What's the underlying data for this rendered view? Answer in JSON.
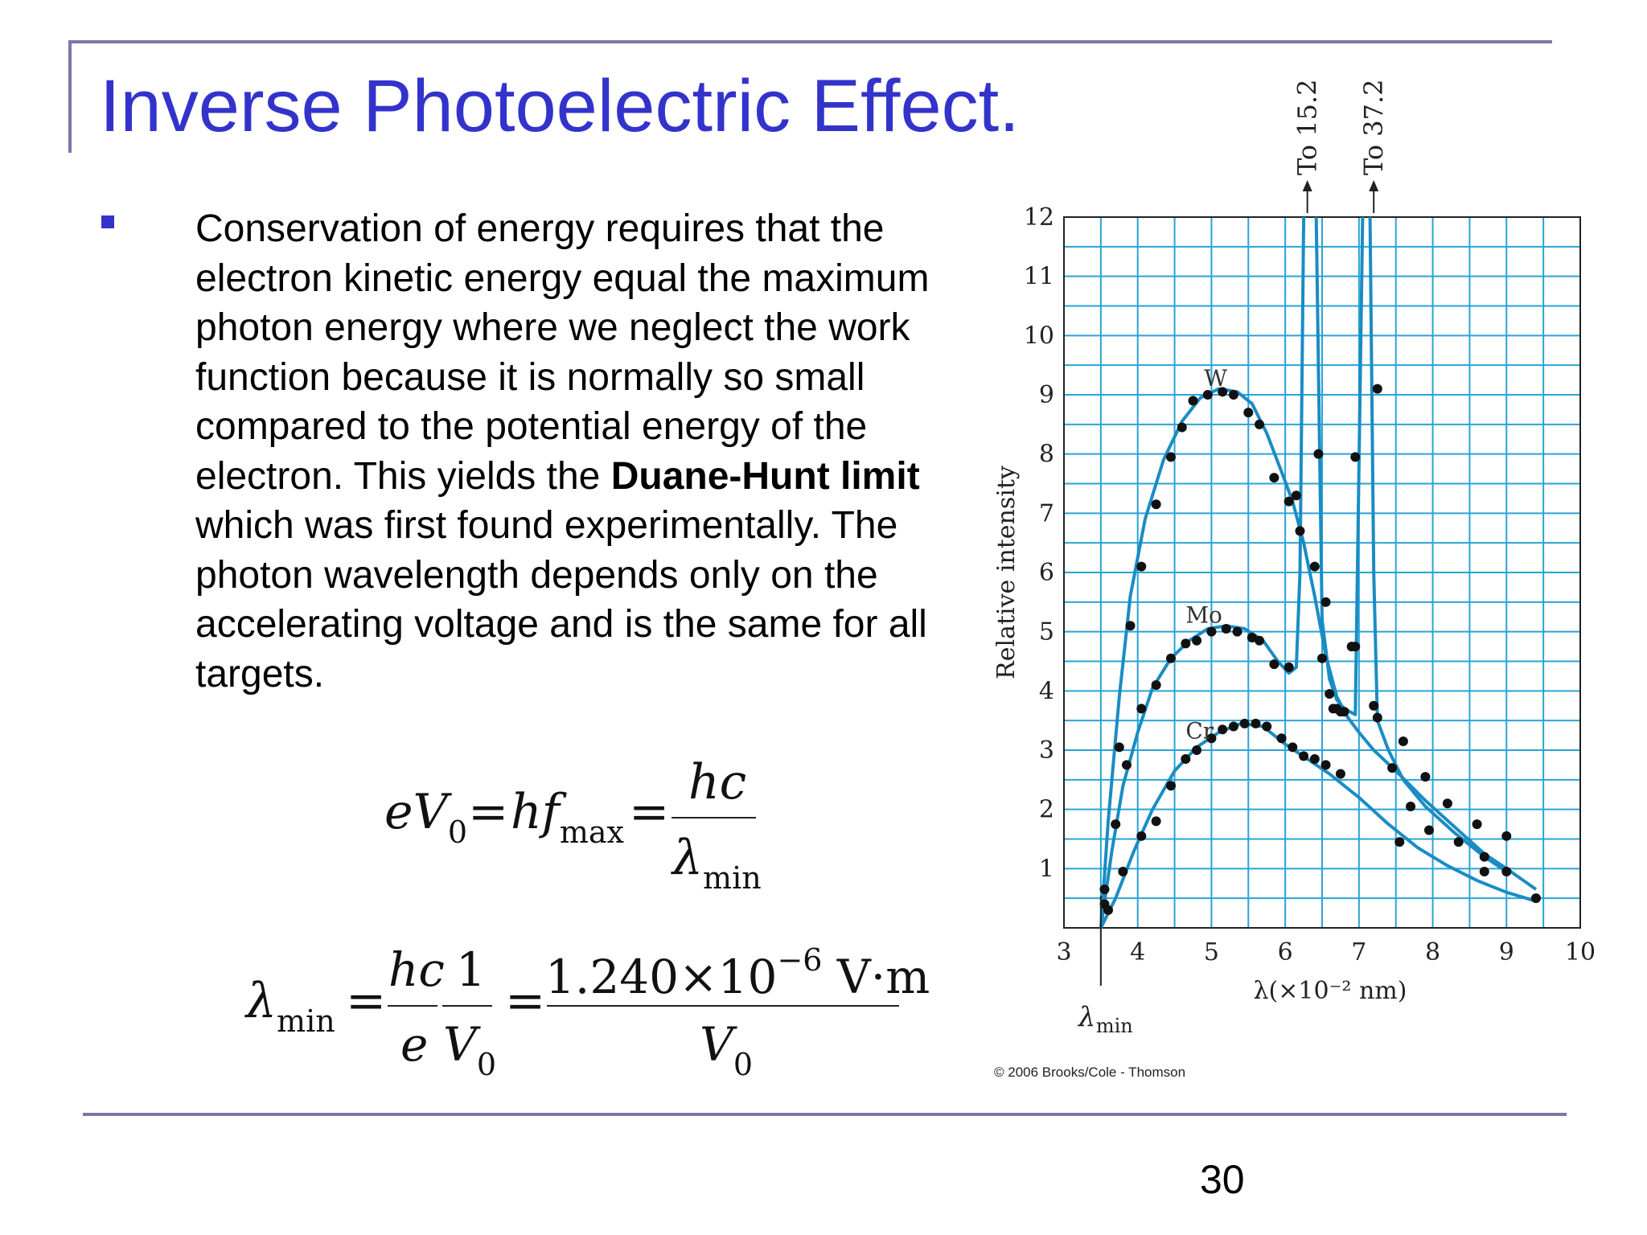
{
  "slide": {
    "title": "Inverse Photoelectric Effect.",
    "body_part1": "Conservation of energy requires that the electron kinetic energy equal the maximum photon energy where we neglect the work function because it is normally so small compared to the potential energy of the electron. This yields the ",
    "body_bold": "Duane-Hunt limit",
    "body_part2": " which was first found experimentally. The photon wavelength depends only on the accelerating voltage and is the same for all targets.",
    "page_number": "30",
    "copyright": "© 2006 Brooks/Cole - Thomson"
  },
  "equations": {
    "eq1": {
      "lhs_e": "e",
      "lhs_V": "V",
      "lhs_sub": "0",
      "eq_sign": "=",
      "hf": "hf",
      "hf_sub": "max",
      "num": "hc",
      "den": "λ",
      "den_sub": "min"
    },
    "eq2": {
      "lhs": "λ",
      "lhs_sub": "min",
      "eq_sign": "=",
      "f1_num": "hc",
      "f1_den": "e",
      "f2_num": "1",
      "f2_den": "V",
      "f2_den_sub": "0",
      "f3_num": "1.240×10",
      "f3_exp": "−6",
      "f3_unit": " V·m",
      "f3_den": "V",
      "f3_den_sub": "0"
    }
  },
  "chart_data": {
    "type": "scatter",
    "xlabel": "λ(×10⁻² nm)",
    "ylabel": "Relative intensity",
    "xlim": [
      3,
      10
    ],
    "ylim": [
      0,
      12
    ],
    "x_ticks": [
      "3",
      "4",
      "5",
      "6",
      "7",
      "8",
      "9",
      "10"
    ],
    "y_ticks": [
      "1",
      "2",
      "3",
      "4",
      "5",
      "6",
      "7",
      "8",
      "9",
      "10",
      "11",
      "12"
    ],
    "grid": true,
    "colors": {
      "grid": "#2aa3d6",
      "curve": "#1a8cc4",
      "points": "#111111"
    },
    "annotations": {
      "to_15": "To 15.2",
      "to_37": "To 37.2",
      "lambda_min": "λ",
      "lambda_min_sub": "min",
      "lambda_min_x": 3.5
    },
    "series": [
      {
        "name": "W",
        "curve": [
          [
            3.5,
            0
          ],
          [
            3.6,
            1.8
          ],
          [
            3.75,
            3.9
          ],
          [
            3.9,
            5.6
          ],
          [
            4.1,
            6.9
          ],
          [
            4.35,
            7.9
          ],
          [
            4.6,
            8.55
          ],
          [
            4.85,
            8.95
          ],
          [
            5.1,
            9.1
          ],
          [
            5.35,
            9.05
          ],
          [
            5.55,
            8.85
          ],
          [
            5.75,
            8.35
          ],
          [
            5.95,
            7.7
          ],
          [
            6.1,
            7.2
          ],
          [
            6.25,
            6.5
          ],
          [
            6.4,
            5.6
          ],
          [
            6.55,
            4.6
          ],
          [
            6.7,
            3.9
          ],
          [
            6.85,
            3.55
          ],
          [
            7.0,
            3.3
          ],
          [
            7.2,
            3.0
          ],
          [
            7.5,
            2.65
          ],
          [
            7.9,
            2.15
          ],
          [
            8.3,
            1.7
          ],
          [
            8.7,
            1.25
          ],
          [
            9.0,
            1.0
          ],
          [
            9.4,
            0.65
          ]
        ],
        "points": [
          [
            3.55,
            0.65
          ],
          [
            3.75,
            1.75
          ],
          [
            3.9,
            2.75
          ],
          [
            4.1,
            3.7
          ],
          [
            4.3,
            4.6
          ],
          [
            4.45,
            5.05
          ],
          [
            4.6,
            5.4
          ],
          [
            4.8,
            5.7
          ],
          [
            5.0,
            5.9
          ],
          [
            5.2,
            6.0
          ],
          [
            5.4,
            6.05
          ],
          [
            5.6,
            6.05
          ],
          [
            5.8,
            5.95
          ],
          [
            6.0,
            5.8
          ],
          [
            6.2,
            5.6
          ],
          [
            6.4,
            5.35
          ],
          [
            6.6,
            5.0
          ],
          [
            6.8,
            4.7
          ],
          [
            7.0,
            4.45
          ],
          [
            7.2,
            4.2
          ],
          [
            7.5,
            3.7
          ],
          [
            7.9,
            3.2
          ],
          [
            8.3,
            2.7
          ],
          [
            8.7,
            2.2
          ],
          [
            9.0,
            1.9
          ]
        ],
        "values": [
          [
            3.55,
            0.65
          ],
          [
            3.75,
            3.05
          ],
          [
            3.9,
            5.1
          ],
          [
            4.05,
            6.1
          ],
          [
            4.25,
            7.15
          ],
          [
            4.45,
            7.95
          ],
          [
            4.6,
            8.45
          ],
          [
            4.75,
            8.9
          ],
          [
            4.95,
            9.0
          ],
          [
            5.15,
            9.05
          ],
          [
            5.3,
            9.0
          ],
          [
            5.5,
            8.7
          ],
          [
            5.65,
            8.5
          ],
          [
            5.85,
            7.6
          ],
          [
            6.05,
            7.2
          ],
          [
            6.15,
            7.3
          ],
          [
            6.2,
            6.7
          ],
          [
            6.4,
            6.1
          ],
          [
            6.55,
            5.5
          ],
          [
            6.65,
            3.7
          ],
          [
            6.75,
            3.65
          ],
          [
            6.9,
            4.75
          ],
          [
            7.25,
            9.1
          ],
          [
            7.2,
            3.75
          ],
          [
            7.6,
            3.15
          ],
          [
            7.9,
            2.55
          ],
          [
            8.2,
            2.1
          ],
          [
            8.6,
            1.75
          ],
          [
            9.0,
            1.55
          ]
        ]
      },
      {
        "name": "Mo",
        "curve": [
          [
            3.5,
            0
          ],
          [
            3.65,
            1.3
          ],
          [
            3.8,
            2.4
          ],
          [
            4.0,
            3.3
          ],
          [
            4.2,
            4.05
          ],
          [
            4.45,
            4.55
          ],
          [
            4.7,
            4.85
          ],
          [
            4.95,
            5.05
          ],
          [
            5.2,
            5.1
          ],
          [
            5.45,
            5.05
          ],
          [
            5.7,
            4.85
          ],
          [
            5.9,
            4.5
          ],
          [
            6.05,
            4.3
          ],
          [
            6.15,
            4.4
          ],
          [
            6.2,
            6.0
          ],
          [
            6.25,
            12.5
          ]
        ],
        "curve2": [
          [
            6.42,
            12.5
          ],
          [
            6.5,
            5.2
          ],
          [
            6.6,
            4.2
          ],
          [
            6.7,
            3.85
          ],
          [
            6.8,
            3.7
          ],
          [
            6.95,
            3.6
          ],
          [
            7.05,
            12.5
          ]
        ],
        "curve3": [
          [
            7.15,
            12.5
          ],
          [
            7.2,
            6.0
          ],
          [
            7.25,
            3.5
          ],
          [
            7.4,
            3.0
          ],
          [
            7.6,
            2.5
          ],
          [
            7.9,
            2.05
          ],
          [
            8.3,
            1.6
          ],
          [
            8.7,
            1.2
          ],
          [
            9.0,
            0.95
          ]
        ],
        "values": [
          [
            3.55,
            0.4
          ],
          [
            3.7,
            1.75
          ],
          [
            3.85,
            2.75
          ],
          [
            4.05,
            3.7
          ],
          [
            4.25,
            4.1
          ],
          [
            4.45,
            4.55
          ],
          [
            4.65,
            4.8
          ],
          [
            4.8,
            4.85
          ],
          [
            5.0,
            5.0
          ],
          [
            5.2,
            5.05
          ],
          [
            5.35,
            5.0
          ],
          [
            5.55,
            4.9
          ],
          [
            5.65,
            4.85
          ],
          [
            5.85,
            4.45
          ],
          [
            6.05,
            4.4
          ],
          [
            6.45,
            8.0
          ],
          [
            6.5,
            4.55
          ],
          [
            6.6,
            3.95
          ],
          [
            6.7,
            3.7
          ],
          [
            6.8,
            3.65
          ],
          [
            6.95,
            4.75
          ],
          [
            6.95,
            7.95
          ],
          [
            7.25,
            3.55
          ],
          [
            7.45,
            2.7
          ],
          [
            7.7,
            2.05
          ],
          [
            7.95,
            1.65
          ],
          [
            8.35,
            1.45
          ],
          [
            8.7,
            1.2
          ],
          [
            9.0,
            0.95
          ]
        ]
      },
      {
        "name": "Cr",
        "curve": [
          [
            3.5,
            0
          ],
          [
            3.7,
            0.5
          ],
          [
            3.95,
            1.3
          ],
          [
            4.2,
            2.0
          ],
          [
            4.5,
            2.65
          ],
          [
            4.8,
            3.05
          ],
          [
            5.1,
            3.3
          ],
          [
            5.4,
            3.45
          ],
          [
            5.7,
            3.4
          ],
          [
            6.0,
            3.1
          ],
          [
            6.3,
            2.85
          ],
          [
            6.6,
            2.6
          ],
          [
            7.0,
            2.2
          ],
          [
            7.4,
            1.75
          ],
          [
            7.8,
            1.35
          ],
          [
            8.2,
            1.05
          ],
          [
            8.6,
            0.8
          ],
          [
            9.0,
            0.6
          ],
          [
            9.4,
            0.45
          ]
        ],
        "values": [
          [
            3.6,
            0.3
          ],
          [
            3.8,
            0.95
          ],
          [
            4.05,
            1.55
          ],
          [
            4.25,
            1.8
          ],
          [
            4.45,
            2.4
          ],
          [
            4.65,
            2.85
          ],
          [
            4.8,
            3.0
          ],
          [
            5.0,
            3.2
          ],
          [
            5.15,
            3.35
          ],
          [
            5.3,
            3.4
          ],
          [
            5.45,
            3.45
          ],
          [
            5.6,
            3.45
          ],
          [
            5.75,
            3.4
          ],
          [
            5.95,
            3.2
          ],
          [
            6.1,
            3.05
          ],
          [
            6.25,
            2.9
          ],
          [
            6.4,
            2.85
          ],
          [
            6.55,
            2.75
          ],
          [
            6.75,
            2.6
          ],
          [
            7.55,
            1.45
          ],
          [
            8.7,
            0.95
          ],
          [
            9.4,
            0.5
          ]
        ]
      }
    ]
  }
}
